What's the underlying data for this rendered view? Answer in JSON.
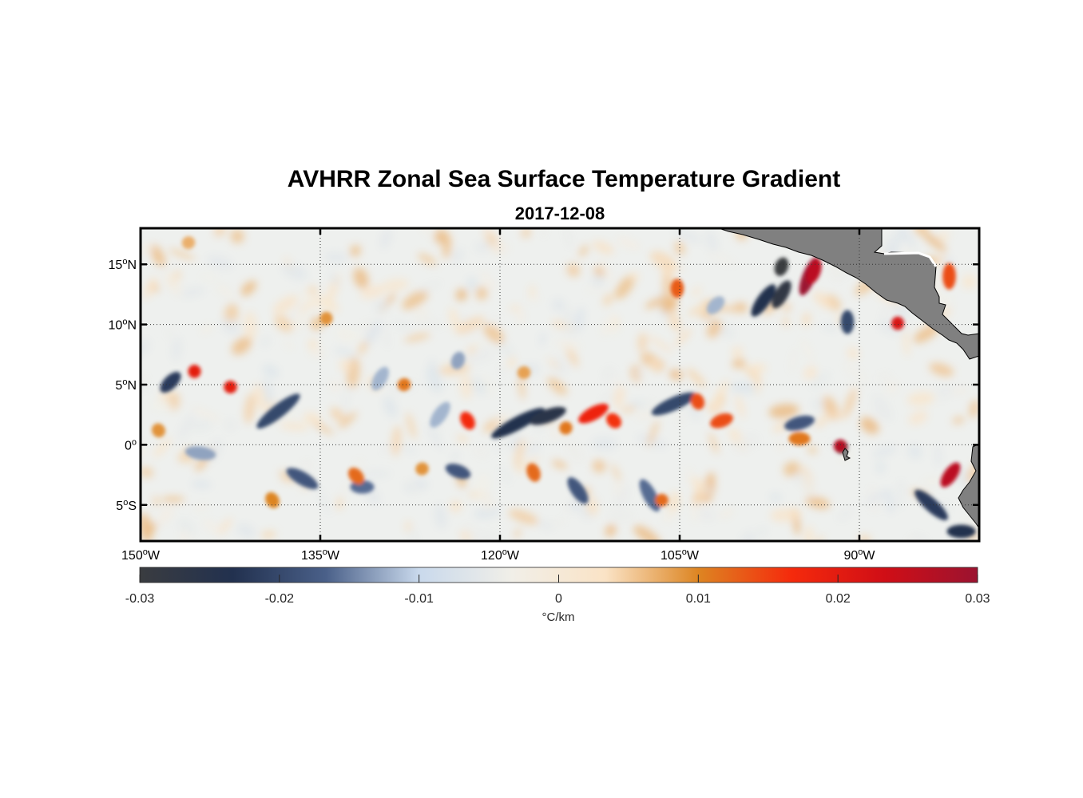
{
  "title": "AVHRR Zonal Sea Surface Temperature Gradient",
  "subtitle": "2017-12-08",
  "map": {
    "lon_range": [
      -150,
      -80
    ],
    "lat_range": [
      -8,
      18
    ],
    "land_color": "#808080",
    "grid": "dotted",
    "lon_ticks": [
      {
        "value": -150,
        "label": "150",
        "hemi": "W"
      },
      {
        "value": -135,
        "label": "135",
        "hemi": "W"
      },
      {
        "value": -120,
        "label": "120",
        "hemi": "W"
      },
      {
        "value": -105,
        "label": "105",
        "hemi": "W"
      },
      {
        "value": -90,
        "label": "90",
        "hemi": "W"
      }
    ],
    "lat_ticks": [
      {
        "value": 15,
        "label": "15",
        "hemi": "N"
      },
      {
        "value": 10,
        "label": "10",
        "hemi": "N"
      },
      {
        "value": 5,
        "label": "5",
        "hemi": "N"
      },
      {
        "value": 0,
        "label": "0",
        "hemi": ""
      },
      {
        "value": -5,
        "label": "5",
        "hemi": "S"
      }
    ],
    "degree_mark": "o"
  },
  "colorbar": {
    "min": -0.03,
    "max": 0.03,
    "ticks": [
      {
        "value": -0.03,
        "label": "-0.03"
      },
      {
        "value": -0.02,
        "label": "-0.02"
      },
      {
        "value": -0.01,
        "label": "-0.01"
      },
      {
        "value": 0,
        "label": "0"
      },
      {
        "value": 0.01,
        "label": "0.01"
      },
      {
        "value": 0.02,
        "label": "0.02"
      },
      {
        "value": 0.03,
        "label": "0.03"
      }
    ],
    "label": "°C/km",
    "colors": [
      "#3a3c40",
      "#22314f",
      "#4a6089",
      "#c9d9ec",
      "#f1efe8",
      "#fae3c6",
      "#dd8522",
      "#f52a0c",
      "#d00e16",
      "#9b1330"
    ]
  },
  "features": {
    "cold": [
      {
        "lon": -147.5,
        "lat": 5.2,
        "len": 2.2,
        "ang": -45,
        "val": -0.022
      },
      {
        "lon": -138.5,
        "lat": 2.8,
        "len": 4.5,
        "ang": -38,
        "val": -0.02
      },
      {
        "lon": -136.5,
        "lat": -2.8,
        "len": 3.0,
        "ang": 30,
        "val": -0.018
      },
      {
        "lon": -131.5,
        "lat": -3.5,
        "len": 2.0,
        "ang": 0,
        "val": -0.016
      },
      {
        "lon": -130.0,
        "lat": 5.5,
        "len": 2.2,
        "ang": -60,
        "val": -0.012
      },
      {
        "lon": -125.0,
        "lat": 2.5,
        "len": 2.5,
        "ang": -55,
        "val": -0.012
      },
      {
        "lon": -123.5,
        "lat": -2.2,
        "len": 2.2,
        "ang": 20,
        "val": -0.018
      },
      {
        "lon": -118.5,
        "lat": 1.8,
        "len": 5.0,
        "ang": -28,
        "val": -0.024
      },
      {
        "lon": -116.0,
        "lat": 2.4,
        "len": 3.2,
        "ang": -20,
        "val": -0.026
      },
      {
        "lon": -113.5,
        "lat": -3.8,
        "len": 2.6,
        "ang": 55,
        "val": -0.018
      },
      {
        "lon": -107.5,
        "lat": -4.2,
        "len": 3.0,
        "ang": 62,
        "val": -0.016
      },
      {
        "lon": -105.5,
        "lat": 3.4,
        "len": 4.0,
        "ang": -24,
        "val": -0.02
      },
      {
        "lon": -102.0,
        "lat": 11.6,
        "len": 1.8,
        "ang": -45,
        "val": -0.012
      },
      {
        "lon": -98.0,
        "lat": 12.0,
        "len": 3.2,
        "ang": -55,
        "val": -0.024
      },
      {
        "lon": -96.5,
        "lat": 14.8,
        "len": 1.6,
        "ang": -70,
        "val": -0.03
      },
      {
        "lon": -96.5,
        "lat": 12.5,
        "len": 2.6,
        "ang": -60,
        "val": -0.028
      },
      {
        "lon": -95.0,
        "lat": 1.8,
        "len": 2.6,
        "ang": -15,
        "val": -0.018
      },
      {
        "lon": -91.0,
        "lat": 10.2,
        "len": 2.0,
        "ang": -90,
        "val": -0.02
      },
      {
        "lon": -91.5,
        "lat": -0.2,
        "len": 1.0,
        "ang": 45,
        "val": -0.028
      },
      {
        "lon": -84.0,
        "lat": -5.0,
        "len": 3.6,
        "ang": 42,
        "val": -0.022
      },
      {
        "lon": -81.5,
        "lat": -7.2,
        "len": 2.4,
        "ang": 0,
        "val": -0.024
      },
      {
        "lon": -145.0,
        "lat": -0.7,
        "len": 2.6,
        "ang": 8,
        "val": -0.013
      },
      {
        "lon": -123.5,
        "lat": 7.0,
        "len": 1.5,
        "ang": -70,
        "val": -0.013
      }
    ],
    "warm": [
      {
        "lon": -145.5,
        "lat": 6.1,
        "len": 0.7,
        "ang": 0,
        "val": 0.02
      },
      {
        "lon": -142.5,
        "lat": 4.8,
        "len": 0.8,
        "ang": 90,
        "val": 0.02
      },
      {
        "lon": -122.7,
        "lat": 2.0,
        "len": 1.6,
        "ang": 60,
        "val": 0.017
      },
      {
        "lon": -117.2,
        "lat": -2.3,
        "len": 1.6,
        "ang": 70,
        "val": 0.012
      },
      {
        "lon": -112.2,
        "lat": 2.6,
        "len": 2.8,
        "ang": -28,
        "val": 0.018
      },
      {
        "lon": -110.5,
        "lat": 2.0,
        "len": 1.4,
        "ang": 45,
        "val": 0.016
      },
      {
        "lon": -103.5,
        "lat": 3.6,
        "len": 1.4,
        "ang": 70,
        "val": 0.014
      },
      {
        "lon": -105.2,
        "lat": 13.0,
        "len": 1.6,
        "ang": 90,
        "val": 0.013
      },
      {
        "lon": -101.5,
        "lat": 2.0,
        "len": 2.0,
        "ang": -20,
        "val": 0.014
      },
      {
        "lon": -94.2,
        "lat": 14.0,
        "len": 3.4,
        "ang": -68,
        "val": 0.03
      },
      {
        "lon": -93.8,
        "lat": 14.4,
        "len": 2.2,
        "ang": -70,
        "val": 0.026
      },
      {
        "lon": -86.8,
        "lat": 10.1,
        "len": 0.7,
        "ang": 0,
        "val": 0.022
      },
      {
        "lon": -91.6,
        "lat": -0.1,
        "len": 0.6,
        "ang": 45,
        "val": 0.027
      },
      {
        "lon": -95.0,
        "lat": 0.5,
        "len": 1.8,
        "ang": 0,
        "val": 0.011
      },
      {
        "lon": -82.4,
        "lat": -2.5,
        "len": 2.4,
        "ang": -55,
        "val": 0.026
      },
      {
        "lon": -82.5,
        "lat": 14.0,
        "len": 2.2,
        "ang": -90,
        "val": 0.014
      },
      {
        "lon": -132.0,
        "lat": -2.6,
        "len": 1.6,
        "ang": 50,
        "val": 0.012
      },
      {
        "lon": -134.5,
        "lat": 10.5,
        "len": 0.7,
        "ang": 0,
        "val": 0.009
      },
      {
        "lon": -128.0,
        "lat": 5.0,
        "len": 0.8,
        "ang": 60,
        "val": 0.011
      },
      {
        "lon": -148.5,
        "lat": 1.2,
        "len": 1.2,
        "ang": 60,
        "val": 0.009
      },
      {
        "lon": -139.0,
        "lat": -4.6,
        "len": 1.4,
        "ang": 60,
        "val": 0.01
      },
      {
        "lon": -106.5,
        "lat": -4.6,
        "len": 1.0,
        "ang": 90,
        "val": 0.012
      },
      {
        "lon": -114.5,
        "lat": 1.4,
        "len": 0.9,
        "ang": 40,
        "val": 0.011
      },
      {
        "lon": -146.0,
        "lat": 16.8,
        "len": 0.9,
        "ang": 70,
        "val": 0.007
      },
      {
        "lon": -118.0,
        "lat": 6.0,
        "len": 0.9,
        "ang": 70,
        "val": 0.008
      },
      {
        "lon": -126.5,
        "lat": -2.0,
        "len": 0.9,
        "ang": 70,
        "val": 0.009
      }
    ]
  }
}
